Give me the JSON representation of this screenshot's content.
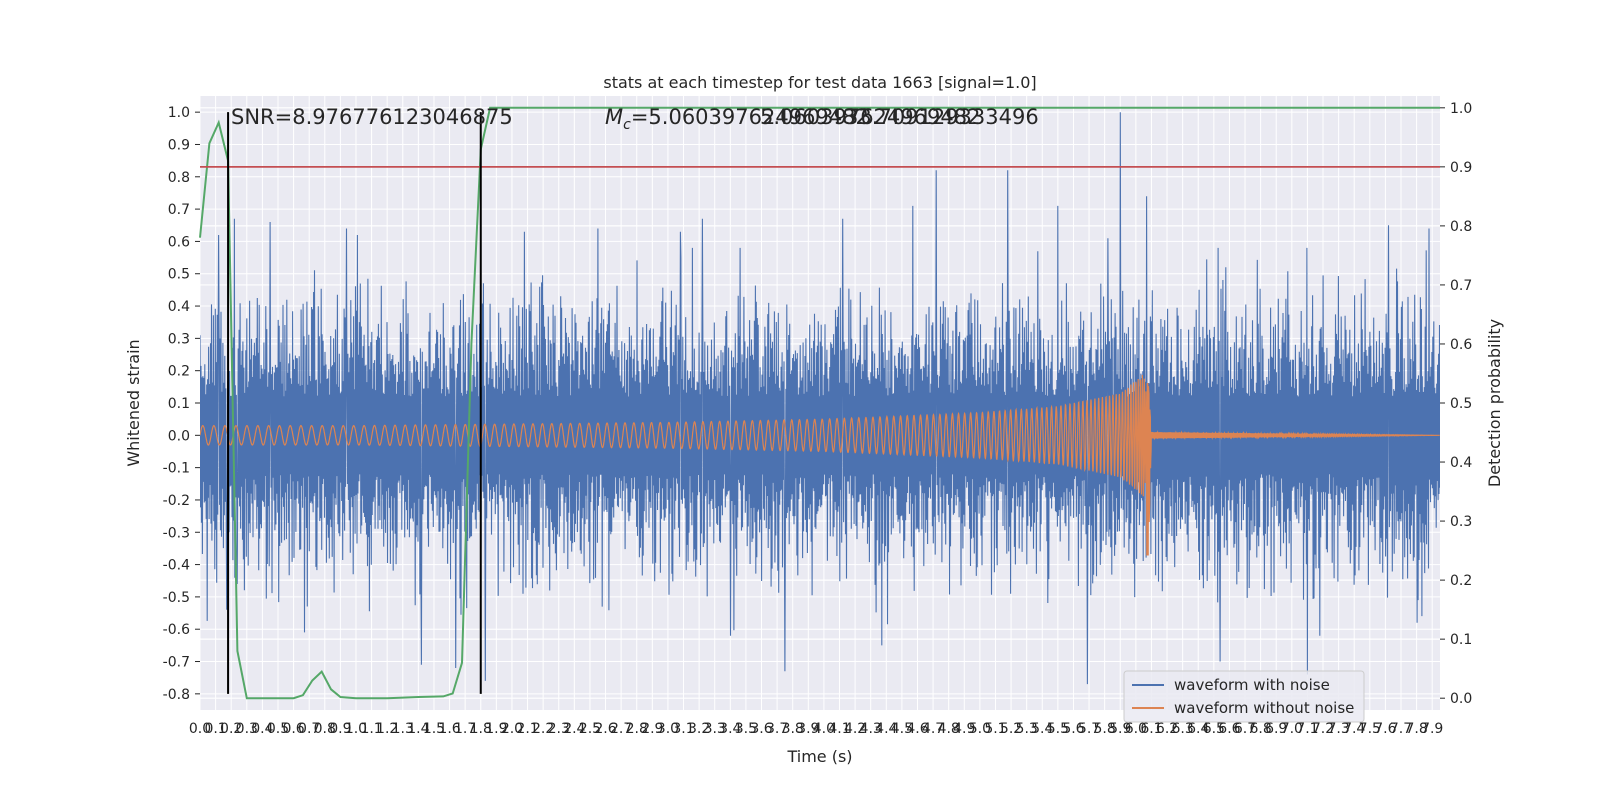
{
  "chart_data": {
    "type": "line",
    "title": "stats at each timestep for test data 1663 [signal=1.0]",
    "xlabel": "Time (s)",
    "ylabel": "Whitened strain",
    "y2label": "Detection probability",
    "xlim": [
      0.0,
      7.95
    ],
    "ylim": [
      -0.85,
      1.05
    ],
    "y2lim": [
      -0.02,
      1.02
    ],
    "xticks": [
      0.0,
      0.1,
      0.2,
      0.3,
      0.4,
      0.5,
      0.6,
      0.7,
      0.8,
      0.9,
      1.0,
      1.1,
      1.2,
      1.3,
      1.4,
      1.5,
      1.6,
      1.7,
      1.8,
      1.9,
      2.0,
      2.1,
      2.2,
      2.3,
      2.4,
      2.5,
      2.6,
      2.7,
      2.8,
      2.9,
      3.0,
      3.1,
      3.2,
      3.3,
      3.4,
      3.5,
      3.6,
      3.7,
      3.8,
      3.9,
      4.0,
      4.1,
      4.2,
      4.3,
      4.4,
      4.5,
      4.6,
      4.7,
      4.8,
      4.9,
      5.0,
      5.1,
      5.2,
      5.3,
      5.4,
      5.5,
      5.6,
      5.7,
      5.8,
      5.9,
      6.0,
      6.1,
      6.2,
      6.3,
      6.4,
      6.5,
      6.6,
      6.7,
      6.8,
      6.9,
      7.0,
      7.1,
      7.2,
      7.3,
      7.4,
      7.5,
      7.6,
      7.7,
      7.8,
      7.9
    ],
    "yticks": [
      -0.8,
      -0.7,
      -0.6,
      -0.5,
      -0.4,
      -0.3,
      -0.2,
      -0.1,
      0.0,
      0.1,
      0.2,
      0.3,
      0.4,
      0.5,
      0.6,
      0.7,
      0.8,
      0.9,
      1.0
    ],
    "y2ticks": [
      0.0,
      0.1,
      0.2,
      0.3,
      0.4,
      0.5,
      0.6,
      0.7,
      0.8,
      0.9,
      1.0
    ],
    "grid": true,
    "legend_position": "lower-right",
    "annotations": [
      {
        "text": "SNR=8.976776123046875"
      },
      {
        "text_prefix": "M",
        "text_sub": "c",
        "text": "=5.060397624969482"
      },
      {
        "text": "5.060397624969482"
      },
      {
        "text": "33.709129333496"
      }
    ],
    "vlines_x": [
      0.18,
      1.8
    ],
    "threshold_line": {
      "axis": "y2",
      "value": 0.9,
      "color": "#c44e52"
    },
    "series": [
      {
        "name": "waveform with noise",
        "axis": "y",
        "color": "#4c72b0",
        "description": "whitened noisy strain, roughly between -0.78 and 1.0 (peak 1.0 near x=5.9)",
        "spikes": [
          {
            "x": 0.12,
            "y": 0.62
          },
          {
            "x": 0.17,
            "y": -0.54
          },
          {
            "x": 0.22,
            "y": 0.67
          },
          {
            "x": 0.24,
            "y": -0.46
          },
          {
            "x": 0.45,
            "y": 0.66
          },
          {
            "x": 0.67,
            "y": -0.61
          },
          {
            "x": 0.94,
            "y": 0.64
          },
          {
            "x": 1.01,
            "y": 0.62
          },
          {
            "x": 1.42,
            "y": -0.71
          },
          {
            "x": 1.64,
            "y": -0.72
          },
          {
            "x": 1.83,
            "y": -0.76
          },
          {
            "x": 2.08,
            "y": 0.63
          },
          {
            "x": 2.55,
            "y": 0.64
          },
          {
            "x": 3.08,
            "y": 0.63
          },
          {
            "x": 3.22,
            "y": 0.67
          },
          {
            "x": 3.4,
            "y": -0.62
          },
          {
            "x": 3.75,
            "y": -0.73
          },
          {
            "x": 4.12,
            "y": 0.67
          },
          {
            "x": 4.37,
            "y": -0.65
          },
          {
            "x": 4.57,
            "y": 0.71
          },
          {
            "x": 4.72,
            "y": 0.82
          },
          {
            "x": 5.18,
            "y": 0.82
          },
          {
            "x": 5.5,
            "y": 0.71
          },
          {
            "x": 5.69,
            "y": -0.77
          },
          {
            "x": 5.82,
            "y": 0.61
          },
          {
            "x": 5.9,
            "y": 1.0
          },
          {
            "x": 6.07,
            "y": 0.74
          },
          {
            "x": 6.54,
            "y": -0.7
          },
          {
            "x": 7.1,
            "y": -0.74
          },
          {
            "x": 7.62,
            "y": 0.65
          },
          {
            "x": 7.88,
            "y": 0.64
          }
        ]
      },
      {
        "name": "waveform without noise",
        "axis": "y",
        "color": "#dd8452",
        "description": "chirp signal growing in amplitude until merger near x=6.1",
        "envelope": [
          [
            0.0,
            0.03
          ],
          [
            1.0,
            0.03
          ],
          [
            2.0,
            0.035
          ],
          [
            3.0,
            0.04
          ],
          [
            4.0,
            0.05
          ],
          [
            5.0,
            0.07
          ],
          [
            5.5,
            0.09
          ],
          [
            5.9,
            0.13
          ],
          [
            6.05,
            0.19
          ],
          [
            6.1,
            0.01
          ],
          [
            7.95,
            0.0
          ]
        ],
        "peak": {
          "x": 6.08,
          "max": 0.16,
          "min": -0.37
        }
      },
      {
        "name": "",
        "axis": "y2",
        "color": "#55a868",
        "x": [
          0.0,
          0.06,
          0.12,
          0.18,
          0.24,
          0.3,
          0.4,
          0.5,
          0.6,
          0.66,
          0.72,
          0.78,
          0.84,
          0.9,
          1.0,
          1.2,
          1.4,
          1.56,
          1.62,
          1.68,
          1.74,
          1.8,
          1.86,
          7.95
        ],
        "y": [
          0.78,
          0.94,
          0.975,
          0.91,
          0.08,
          0.0,
          0.0,
          0.0,
          0.0,
          0.005,
          0.03,
          0.045,
          0.015,
          0.002,
          0.0,
          0.0,
          0.002,
          0.003,
          0.008,
          0.06,
          0.6,
          0.93,
          1.0,
          1.0
        ]
      }
    ]
  }
}
